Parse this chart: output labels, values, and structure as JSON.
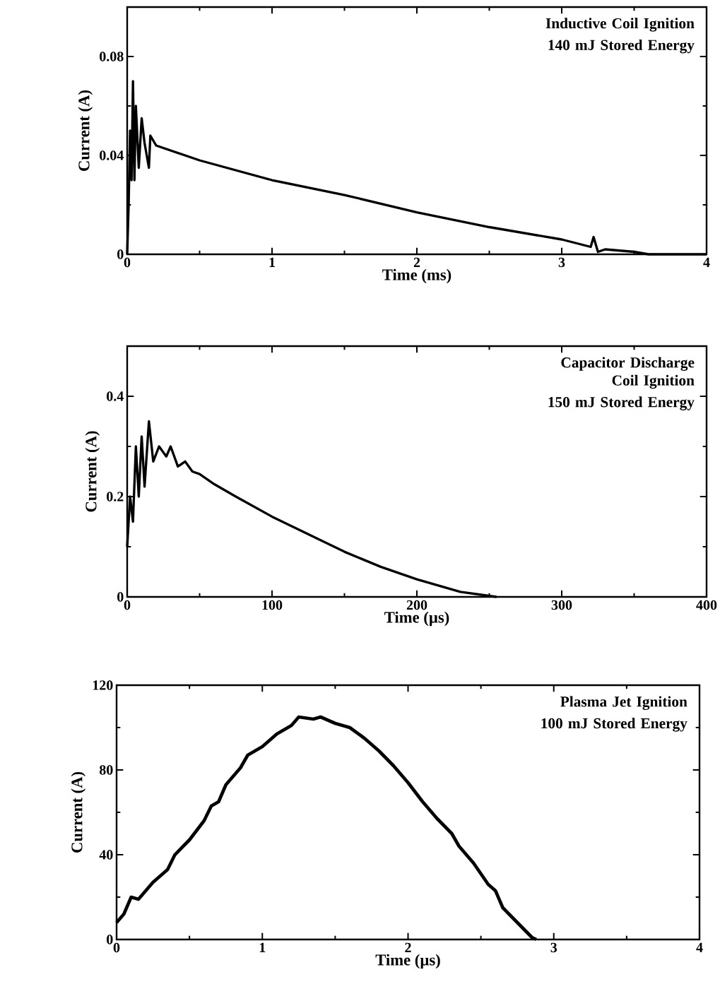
{
  "chart_data": [
    {
      "type": "line",
      "xlabel": "Time (ms)",
      "ylabel": "Current (A)",
      "annotations": [
        "Inductive Coil Ignition",
        "140 mJ Stored Energy"
      ],
      "xlim": [
        0,
        4
      ],
      "ylim": [
        0,
        0.1
      ],
      "xticks": [
        0,
        1,
        2,
        3,
        4
      ],
      "yticks": [
        0,
        0.04,
        0.08
      ],
      "color": "#000000",
      "x": [
        0,
        0.01,
        0.02,
        0.03,
        0.04,
        0.05,
        0.06,
        0.08,
        0.1,
        0.12,
        0.15,
        0.16,
        0.2,
        0.5,
        1,
        1.5,
        2,
        2.5,
        3,
        3.2,
        3.22,
        3.25,
        3.3,
        3.5,
        3.6,
        4
      ],
      "values": [
        0,
        0.02,
        0.05,
        0.03,
        0.07,
        0.03,
        0.06,
        0.035,
        0.055,
        0.045,
        0.035,
        0.048,
        0.044,
        0.038,
        0.03,
        0.024,
        0.017,
        0.011,
        0.006,
        0.003,
        0.007,
        0.001,
        0.002,
        0.001,
        0,
        0
      ]
    },
    {
      "type": "line",
      "xlabel": "Time (µs)",
      "ylabel": "Current (A)",
      "annotations": [
        "Capacitor Discharge Coil Ignition",
        "150 mJ Stored Energy"
      ],
      "xlim": [
        0,
        400
      ],
      "ylim": [
        0,
        0.5
      ],
      "xticks": [
        0,
        100,
        200,
        300,
        400
      ],
      "yticks": [
        0,
        0.2,
        0.4
      ],
      "color": "#000000",
      "x": [
        0,
        2,
        4,
        6,
        8,
        10,
        12,
        15,
        18,
        22,
        27,
        30,
        35,
        40,
        45,
        50,
        60,
        75,
        100,
        125,
        150,
        175,
        200,
        230,
        255
      ],
      "values": [
        0.1,
        0.2,
        0.15,
        0.3,
        0.2,
        0.32,
        0.22,
        0.35,
        0.27,
        0.3,
        0.28,
        0.3,
        0.26,
        0.27,
        0.25,
        0.245,
        0.225,
        0.2,
        0.16,
        0.125,
        0.09,
        0.06,
        0.035,
        0.01,
        0
      ]
    },
    {
      "type": "line",
      "xlabel": "Time (µs)",
      "ylabel": "Current (A)",
      "annotations": [
        "Plasma Jet Ignition",
        "100 mJ Stored Energy"
      ],
      "xlim": [
        0,
        4
      ],
      "ylim": [
        0,
        120
      ],
      "xticks": [
        0,
        1,
        2,
        3,
        4
      ],
      "yticks": [
        0,
        40,
        80,
        120
      ],
      "color": "#000000",
      "x": [
        0,
        0.05,
        0.1,
        0.15,
        0.25,
        0.35,
        0.4,
        0.5,
        0.6,
        0.65,
        0.7,
        0.75,
        0.85,
        0.9,
        1.0,
        1.1,
        1.2,
        1.25,
        1.35,
        1.4,
        1.5,
        1.6,
        1.7,
        1.8,
        1.9,
        2.0,
        2.1,
        2.2,
        2.3,
        2.35,
        2.45,
        2.55,
        2.6,
        2.65,
        2.75,
        2.85,
        2.88
      ],
      "values": [
        8,
        12,
        20,
        19,
        27,
        33,
        40,
        47,
        56,
        63,
        65,
        73,
        81,
        87,
        91,
        97,
        101,
        105,
        104,
        105,
        102,
        100,
        95,
        89,
        82,
        74,
        65,
        57,
        50,
        44,
        36,
        26,
        23,
        15,
        8,
        1,
        0
      ]
    }
  ]
}
